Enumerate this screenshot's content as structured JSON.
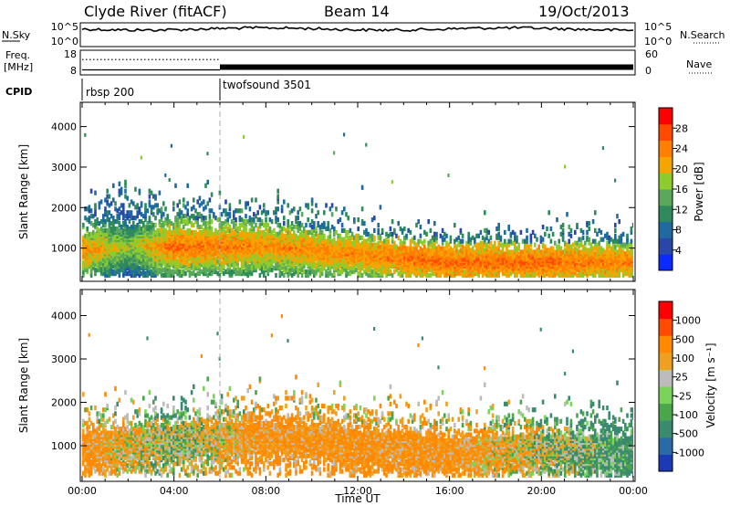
{
  "header": {
    "station": "Clyde River (fitACF)",
    "beam": "Beam 14",
    "date": "19/Oct/2013"
  },
  "chart_data": [
    {
      "type": "line",
      "panel": "noise",
      "left_label": "N.Sky",
      "right_label": "N.Search",
      "left_ticks": [
        "10^5",
        "10^0"
      ],
      "right_ticks": [
        "10^5",
        "10^0"
      ],
      "series": [
        {
          "name": "N.Sky",
          "style": "solid",
          "level": 0.78
        },
        {
          "name": "N.Search",
          "style": "dotted",
          "level": 0.78
        }
      ]
    },
    {
      "type": "line",
      "panel": "frequency",
      "left_label": "Freq.",
      "left_unit": "[MHz]",
      "right_label": "Nave",
      "left_ticks": [
        "18",
        "8"
      ],
      "right_ticks": [
        "60",
        "0"
      ],
      "ylim_left": [
        8,
        18
      ],
      "ylim_right": [
        0,
        60
      ],
      "series": [
        {
          "name": "Freq.",
          "style": "solid",
          "x": [
            0,
            6,
            6,
            24
          ],
          "y": [
            9.8,
            9.8,
            11.0,
            11.0
          ]
        },
        {
          "name": "Nave",
          "style": "dotted",
          "x": [
            0,
            6
          ],
          "y": [
            38,
            38
          ]
        }
      ]
    },
    {
      "type": "table",
      "panel": "cpid",
      "label": "CPID",
      "segments": [
        {
          "name": "rbsp 200",
          "start_hour": 0,
          "end_hour": 6
        },
        {
          "name": "twofsound 3501",
          "start_hour": 6,
          "end_hour": 24
        }
      ]
    },
    {
      "type": "heatmap",
      "panel": "power",
      "ylabel": "Slant Range [km]",
      "ylim": [
        180,
        4600
      ],
      "yticks": [
        1000,
        2000,
        3000,
        4000
      ],
      "colorbar_label": "Power [dB]",
      "colorbar_ticks": [
        4,
        8,
        12,
        16,
        20,
        24,
        28
      ],
      "colorbar_colors": [
        "#0a2aff",
        "#2a46a8",
        "#1f6aa0",
        "#2e8a5a",
        "#5aa85a",
        "#8ccc2c",
        "#f5a400",
        "#ff7f00",
        "#ff4a00",
        "#ff0000"
      ],
      "description_profile": [
        {
          "hour": 0,
          "core_km": 900,
          "spread_km": 300,
          "value": 26
        },
        {
          "hour": 2,
          "core_km": 1000,
          "spread_km": 500,
          "value": 20
        },
        {
          "hour": 4,
          "core_km": 1000,
          "spread_km": 350,
          "value": 28
        },
        {
          "hour": 8,
          "core_km": 1000,
          "spread_km": 300,
          "value": 26
        },
        {
          "hour": 12,
          "core_km": 800,
          "spread_km": 250,
          "value": 26
        },
        {
          "hour": 16,
          "core_km": 600,
          "spread_km": 250,
          "value": 28
        },
        {
          "hour": 20,
          "core_km": 600,
          "spread_km": 250,
          "value": 28
        },
        {
          "hour": 24,
          "core_km": 600,
          "spread_km": 250,
          "value": 26
        }
      ]
    },
    {
      "type": "heatmap",
      "panel": "velocity",
      "ylabel": "Slant Range [km]",
      "xlabel": "Time UT",
      "xticks": [
        "00:00",
        "04:00",
        "08:00",
        "12:00",
        "16:00",
        "20:00",
        "00:00"
      ],
      "xlim_hours": [
        0,
        24
      ],
      "ylim": [
        180,
        4600
      ],
      "yticks": [
        1000,
        2000,
        3000,
        4000
      ],
      "colorbar_label": "Velocity [m s⁻¹]",
      "colorbar_ticks": [
        "1000",
        "500",
        "100",
        "25",
        "-25",
        "-100",
        "-500",
        "-1000"
      ],
      "colorbar_colors": [
        "#1a3ab8",
        "#2a6aa6",
        "#3a8a70",
        "#4aa64a",
        "#7ad45a",
        "#bcbcbc",
        "#f0a020",
        "#ff8a00",
        "#ff4a00",
        "#ff0000"
      ],
      "description_profile": [
        {
          "hour": 0,
          "core_km": 900,
          "value": -100
        },
        {
          "hour": 4,
          "core_km": 1100,
          "value": 25
        },
        {
          "hour": 8,
          "core_km": 1200,
          "value": -100
        },
        {
          "hour": 12,
          "core_km": 1000,
          "value": -100
        },
        {
          "hour": 16,
          "core_km": 800,
          "value": -100
        },
        {
          "hour": 20,
          "core_km": 900,
          "value": 0
        },
        {
          "hour": 24,
          "core_km": 800,
          "value": 100
        }
      ]
    }
  ]
}
